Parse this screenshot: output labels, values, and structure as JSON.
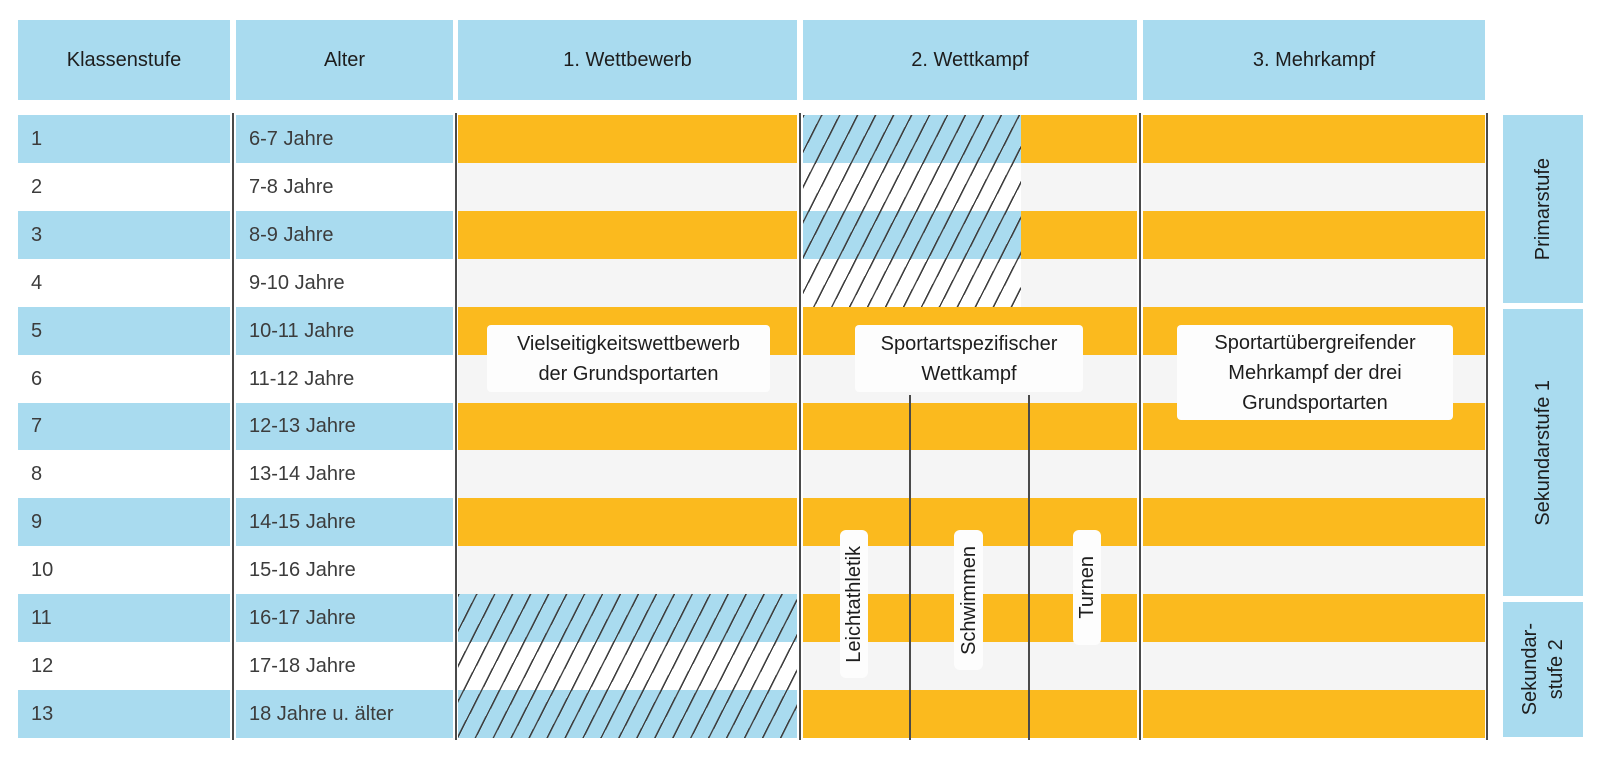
{
  "header": {
    "klassenstufe": "Klassenstufe",
    "alter": "Alter",
    "wettbewerb": "1. Wettbewerb",
    "wettkampf": "2. Wettkampf",
    "mehrkampf": "3. Mehrkampf"
  },
  "rows": [
    {
      "grade": "1",
      "age": "6-7 Jahre"
    },
    {
      "grade": "2",
      "age": "7-8 Jahre"
    },
    {
      "grade": "3",
      "age": "8-9 Jahre"
    },
    {
      "grade": "4",
      "age": "9-10 Jahre"
    },
    {
      "grade": "5",
      "age": "10-11 Jahre"
    },
    {
      "grade": "6",
      "age": "11-12 Jahre"
    },
    {
      "grade": "7",
      "age": "12-13 Jahre"
    },
    {
      "grade": "8",
      "age": "13-14 Jahre"
    },
    {
      "grade": "9",
      "age": "14-15 Jahre"
    },
    {
      "grade": "10",
      "age": "15-16 Jahre"
    },
    {
      "grade": "11",
      "age": "16-17 Jahre"
    },
    {
      "grade": "12",
      "age": "17-18 Jahre"
    },
    {
      "grade": "13",
      "age": "18 Jahre u. älter"
    }
  ],
  "competitions": {
    "wettbewerb": {
      "label_lines": [
        "Vielseitigkeitswettbewerb",
        "der Grundsportarten"
      ],
      "hatched_grades": [
        11,
        12,
        13
      ]
    },
    "wettkampf": {
      "label_lines": [
        "Sportartspezifischer",
        "Wettkampf"
      ],
      "hatched_grades": [
        1,
        2,
        3,
        4
      ],
      "sports": [
        "Leichtathletik",
        "Schwimmen",
        "Turnen"
      ]
    },
    "mehrkampf": {
      "label_lines": [
        "Sportartübergreifender",
        "Mehrkampf der drei",
        "Grundsportarten"
      ],
      "hatched_grades": []
    }
  },
  "sidebar": [
    {
      "lines": [
        "Primarstufe"
      ],
      "grades": "1-4"
    },
    {
      "lines": [
        "Sekundarstufe 1"
      ],
      "grades": "5-10"
    },
    {
      "lines": [
        "Sekundar-",
        "stufe 2"
      ],
      "grades": "11-13"
    }
  ],
  "colors": {
    "blue": "#a9dbef",
    "orange": "#fbba1e",
    "row_gray": "#f5f5f5",
    "hatch_line": "#3f3f3f",
    "divider_line": "#4a4a4a",
    "label_box_bg": "#fdfdfd",
    "text": "#3c3c3c"
  }
}
